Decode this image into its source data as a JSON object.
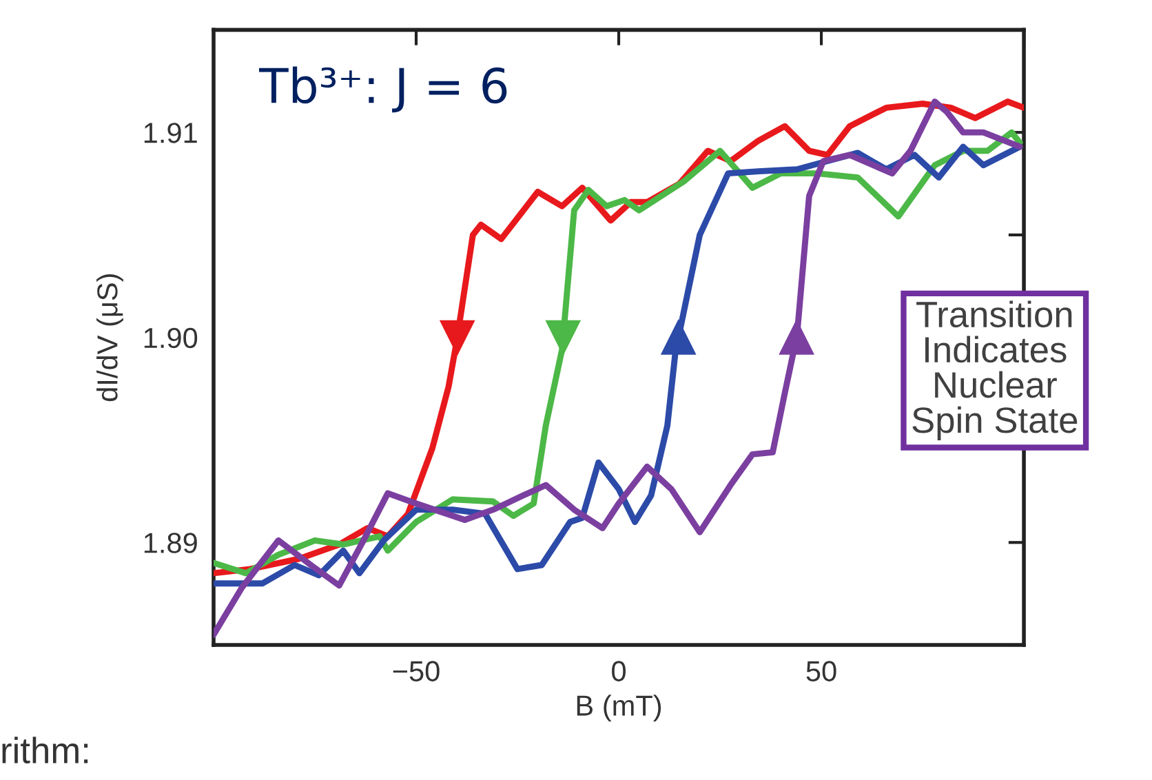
{
  "chart_data": {
    "type": "line",
    "xlabel": "B (mT)",
    "ylabel": "dI/dV (μS)",
    "annotations": [
      "Tb³⁺: J = 6",
      "Transition\nIndicates\nNuclear\nSpin State",
      "rithm:"
    ],
    "xlim": [
      -100,
      100
    ],
    "xticks": [
      {
        "value": -100,
        "label": null
      },
      {
        "value": -50,
        "label": "−50"
      },
      0,
      50,
      {
        "value": 100,
        "label": null
      }
    ],
    "ylim": [
      1.885,
      1.915
    ],
    "yticks": [
      {
        "value": 1.885,
        "label": null
      },
      {
        "value": 1.89,
        "label": "1.89"
      },
      {
        "value": 1.895,
        "label": null
      },
      {
        "value": 1.9,
        "label": "1.90"
      },
      {
        "value": 1.905,
        "label": null
      },
      {
        "value": 1.91,
        "label": "1.91"
      },
      {
        "value": 1.915,
        "label": null
      }
    ],
    "grid": false,
    "legend": false,
    "line_style": "solid",
    "marker": "none",
    "series": [
      {
        "color": "#e8191c",
        "x": [
          100,
          96,
          88,
          82,
          75,
          66,
          57,
          51.5,
          47,
          41,
          34.5,
          27.6,
          22,
          15,
          7,
          3,
          -2,
          -9,
          -14,
          -20,
          -29,
          -34,
          -36,
          -40,
          -42,
          -46,
          -52,
          -57,
          -62,
          -69,
          -79,
          -91,
          -100
        ],
        "values": [
          1.9112,
          1.9115,
          1.9107,
          1.9112,
          1.9114,
          1.9112,
          1.9103,
          1.9089,
          1.9091,
          1.9103,
          1.9096,
          1.9086,
          1.9091,
          1.9075,
          1.9066,
          1.9066,
          1.9057,
          1.9073,
          1.9064,
          1.9071,
          1.9048,
          1.9055,
          1.905,
          1.8998,
          1.8976,
          1.8946,
          1.8914,
          1.8903,
          1.8907,
          1.8899,
          1.8892,
          1.8887,
          1.8885
        ]
      },
      {
        "color": "#4cb847",
        "x": [
          99,
          97,
          91,
          85,
          78,
          69,
          59,
          49,
          40,
          33,
          25,
          16,
          5,
          1.4,
          -3,
          -7.5,
          -11,
          -14,
          -18,
          -21,
          -26,
          -31,
          -41,
          -50,
          -57,
          -59,
          -68,
          -75,
          -84,
          -92,
          -100
        ],
        "values": [
          1.9095,
          1.91,
          1.9091,
          1.9091,
          1.9084,
          1.9059,
          1.9078,
          1.908,
          1.908,
          1.9073,
          1.9091,
          1.9076,
          1.9062,
          1.9067,
          1.9064,
          1.9072,
          1.9062,
          1.8994,
          1.8957,
          1.8919,
          1.8913,
          1.892,
          1.8921,
          1.891,
          1.8896,
          1.8903,
          1.8899,
          1.8901,
          1.8894,
          1.8885,
          1.889
        ]
      },
      {
        "color": "#2c4aa8",
        "x": [
          -100,
          -88,
          -80,
          -74,
          -68,
          -64,
          -58,
          -50,
          -41,
          -33,
          -25,
          -19,
          -12,
          -9,
          -5,
          0,
          4,
          8,
          12,
          14,
          20,
          27,
          34.5,
          44,
          51.5,
          59,
          66,
          73,
          79,
          85,
          90,
          99
        ],
        "values": [
          1.888,
          1.888,
          1.8889,
          1.8884,
          1.8896,
          1.8885,
          1.8901,
          1.8916,
          1.8916,
          1.8914,
          1.8887,
          1.8889,
          1.891,
          1.8912,
          1.8939,
          1.8926,
          1.891,
          1.8923,
          1.8957,
          1.8993,
          1.905,
          1.908,
          1.9081,
          1.9082,
          1.9086,
          1.909,
          1.9082,
          1.9089,
          1.9078,
          1.9093,
          1.9084,
          1.9093
        ]
      },
      {
        "color": "#7b3fa0",
        "x": [
          -100,
          -93,
          -84,
          -76,
          -69,
          -63,
          -57,
          -50,
          -38,
          -31,
          -23.5,
          -18,
          -11,
          -4,
          0,
          7,
          13,
          20,
          27.6,
          33,
          38,
          41,
          44,
          47,
          50.5,
          57,
          67.5,
          72,
          78,
          81,
          85,
          90,
          99
        ],
        "values": [
          1.8855,
          1.8878,
          1.8901,
          1.8889,
          1.8879,
          1.8901,
          1.8924,
          1.8919,
          1.8911,
          1.8916,
          1.8923,
          1.8928,
          1.8916,
          1.8907,
          1.8919,
          1.8937,
          1.8926,
          1.8905,
          1.8928,
          1.8943,
          1.8944,
          1.8973,
          1.9001,
          1.9069,
          1.9086,
          1.9089,
          1.908,
          1.9091,
          1.9115,
          1.911,
          1.91,
          1.91,
          1.9093
        ]
      }
    ]
  }
}
